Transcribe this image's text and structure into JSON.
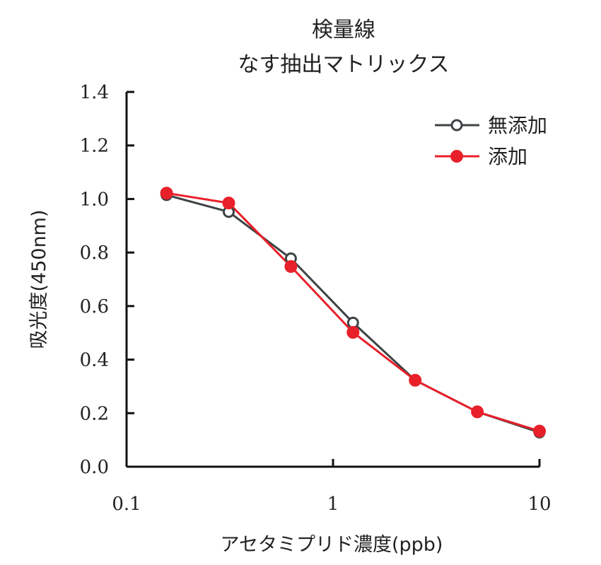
{
  "chart_data": {
    "type": "line",
    "title": "検量線",
    "subtitle": "なす抽出マトリックス",
    "xlabel": "アセタミプリド濃度(ppb)",
    "ylabel": "吸光度(450nm)",
    "xscale": "log",
    "xlim": [
      0.1,
      10
    ],
    "ylim": [
      0.0,
      1.4
    ],
    "xticks": [
      {
        "value": 0.1,
        "label": "0.1"
      },
      {
        "value": 1,
        "label": "1"
      },
      {
        "value": 10,
        "label": "10"
      }
    ],
    "yticks": [
      {
        "value": 0.0,
        "label": "0.0"
      },
      {
        "value": 0.2,
        "label": "0.2"
      },
      {
        "value": 0.4,
        "label": "0.4"
      },
      {
        "value": 0.6,
        "label": "0.6"
      },
      {
        "value": 0.8,
        "label": "0.8"
      },
      {
        "value": 1.0,
        "label": "1.0"
      },
      {
        "value": 1.2,
        "label": "1.2"
      },
      {
        "value": 1.4,
        "label": "1.4"
      }
    ],
    "x": [
      0.15625,
      0.3125,
      0.625,
      1.25,
      2.5,
      5,
      10
    ],
    "series": [
      {
        "name": "無添加",
        "color": "#3d4345",
        "marker": "open-circle",
        "values": [
          1.015,
          0.952,
          0.778,
          0.538,
          0.323,
          0.205,
          0.128
        ]
      },
      {
        "name": "添加",
        "color": "#e8202a",
        "marker": "filled-circle",
        "values": [
          1.022,
          0.985,
          0.748,
          0.502,
          0.323,
          0.205,
          0.133
        ]
      }
    ],
    "legend_position": "top-right",
    "grid": false
  }
}
